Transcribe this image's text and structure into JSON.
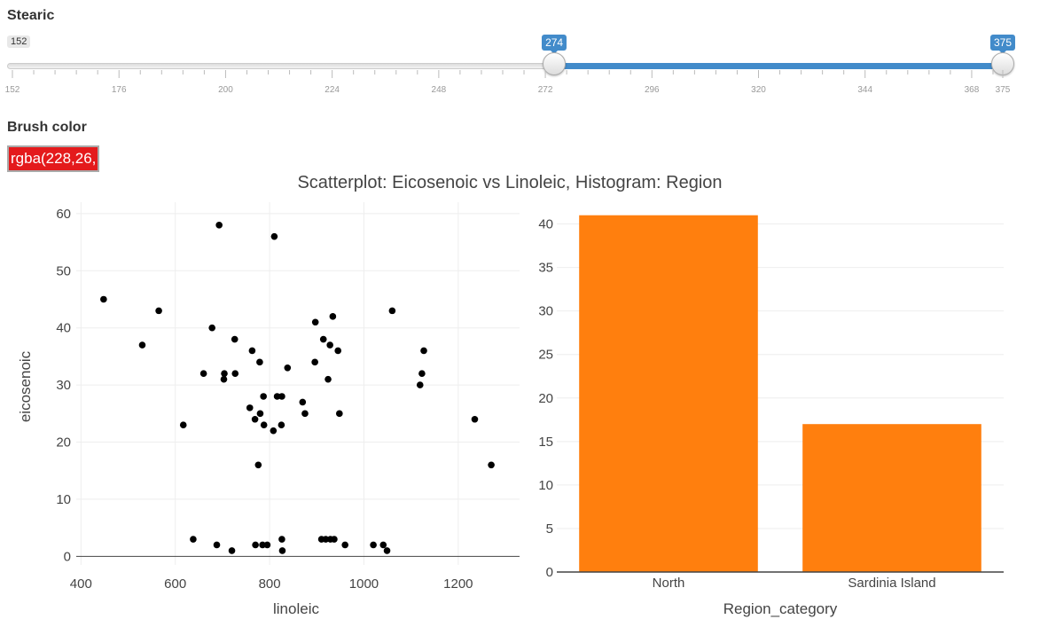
{
  "controls": {
    "stearic": {
      "label": "Stearic",
      "min": 152,
      "max": 375,
      "low": 274,
      "high": 375,
      "min_label": "152",
      "low_label": "274",
      "high_label": "375",
      "ticks": [
        "152",
        "176",
        "200",
        "224",
        "248",
        "272",
        "296",
        "320",
        "344",
        "368",
        "375"
      ]
    },
    "brush_color": {
      "label": "Brush color",
      "value": "rgba(228,26,",
      "swatch": "#e41a1c"
    },
    "colors": {
      "slider_range": "#428bca",
      "points": "#000000",
      "bars": "#ff7f0e"
    }
  },
  "chart_data": [
    {
      "type": "scatter",
      "title": "Scatterplot: Eicosenoic vs Linoleic, Histogram: Region",
      "xlabel": "linoleic",
      "ylabel": "eicosenoic",
      "xlim": [
        390,
        1330
      ],
      "ylim": [
        -1.5,
        62
      ],
      "xticks": [
        400,
        600,
        800,
        1000,
        1200
      ],
      "yticks": [
        0,
        10,
        20,
        30,
        40,
        50,
        60
      ],
      "grid": true,
      "points": [
        [
          448,
          45
        ],
        [
          530,
          37
        ],
        [
          565,
          43
        ],
        [
          617,
          23
        ],
        [
          638,
          3
        ],
        [
          660,
          32
        ],
        [
          678,
          40
        ],
        [
          688,
          2
        ],
        [
          693,
          58
        ],
        [
          703,
          31
        ],
        [
          704,
          32
        ],
        [
          720,
          1
        ],
        [
          726,
          38
        ],
        [
          727,
          32
        ],
        [
          758,
          26
        ],
        [
          763,
          36
        ],
        [
          769,
          24
        ],
        [
          770,
          2
        ],
        [
          776,
          16
        ],
        [
          779,
          34
        ],
        [
          780,
          25
        ],
        [
          785,
          2
        ],
        [
          787,
          28
        ],
        [
          788,
          23
        ],
        [
          795,
          2
        ],
        [
          808,
          22
        ],
        [
          810,
          56
        ],
        [
          816,
          28
        ],
        [
          825,
          23
        ],
        [
          826,
          28
        ],
        [
          826,
          3
        ],
        [
          827,
          1
        ],
        [
          838,
          33
        ],
        [
          870,
          27
        ],
        [
          875,
          25
        ],
        [
          896,
          34
        ],
        [
          897,
          41
        ],
        [
          910,
          3
        ],
        [
          914,
          38
        ],
        [
          919,
          3
        ],
        [
          924,
          31
        ],
        [
          928,
          37
        ],
        [
          929,
          3
        ],
        [
          934,
          42
        ],
        [
          937,
          3
        ],
        [
          945,
          36
        ],
        [
          948,
          25
        ],
        [
          960,
          2
        ],
        [
          1020,
          2
        ],
        [
          1041,
          2
        ],
        [
          1049,
          1
        ],
        [
          1060,
          43
        ],
        [
          1119,
          30
        ],
        [
          1123,
          32
        ],
        [
          1127,
          36
        ],
        [
          1235,
          24
        ],
        [
          1270,
          16
        ]
      ]
    },
    {
      "type": "bar",
      "xlabel": "Region_category",
      "categories": [
        "North",
        "Sardinia Island"
      ],
      "values": [
        41,
        17
      ],
      "ylim": [
        0,
        42.5
      ],
      "yticks": [
        0,
        5,
        10,
        15,
        20,
        25,
        30,
        35,
        40
      ],
      "grid": true
    }
  ]
}
